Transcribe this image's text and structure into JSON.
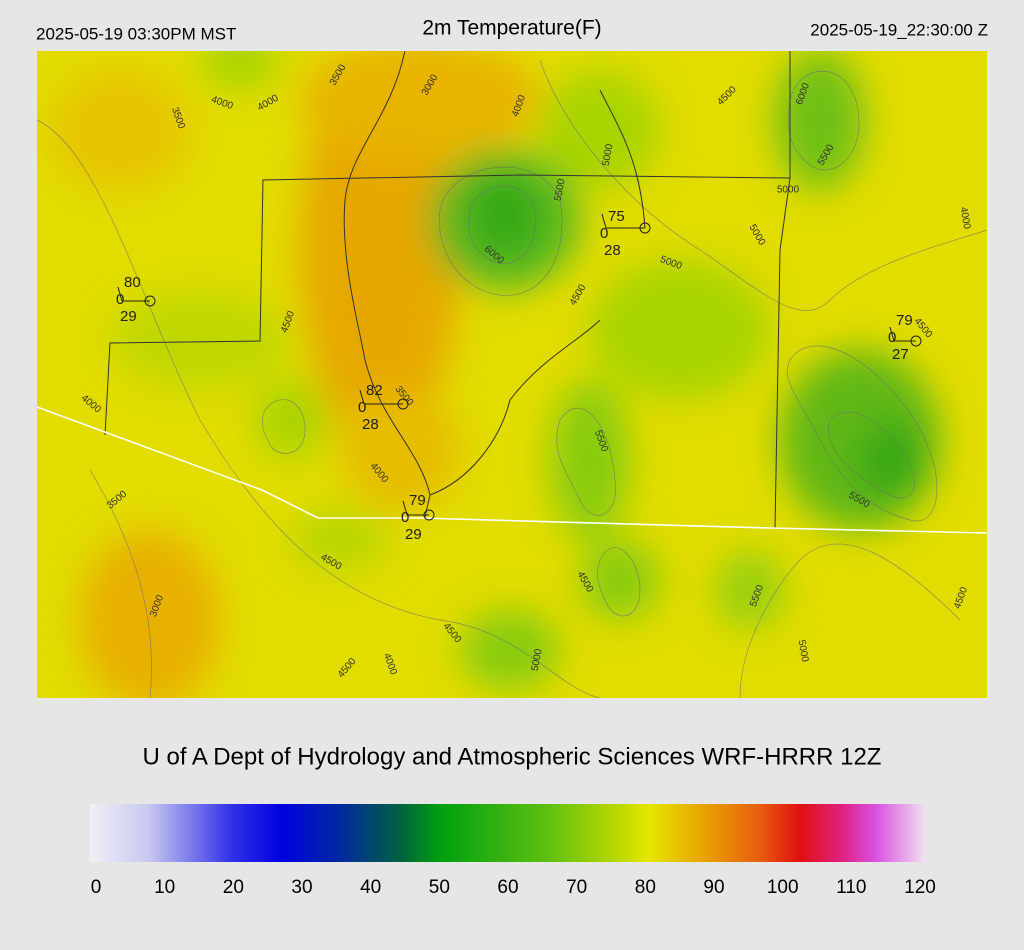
{
  "header": {
    "left": "2025-05-19 03:30PM MST",
    "title": "2m Temperature(F)",
    "right": "2025-05-19_22:30:00 Z"
  },
  "map": {
    "stations": [
      {
        "temp": "80",
        "mid": "0",
        "dew": "29"
      },
      {
        "temp": "75",
        "mid": "0",
        "dew": "28"
      },
      {
        "temp": "79",
        "mid": "0",
        "dew": "27"
      },
      {
        "temp": "82",
        "mid": "0",
        "dew": "28"
      },
      {
        "temp": "79",
        "mid": "0",
        "dew": "29"
      }
    ],
    "contour_labels": [
      "3500",
      "3000",
      "4000",
      "4000",
      "3500",
      "4000",
      "4500",
      "6000",
      "5500",
      "5000",
      "5500",
      "5000",
      "4000",
      "5000",
      "6000",
      "5000",
      "4500",
      "4500",
      "4500",
      "3500",
      "4000",
      "5500",
      "4000",
      "3500",
      "5500",
      "4500",
      "4500",
      "5500",
      "4500",
      "3000",
      "4500",
      "4000",
      "4500",
      "5000",
      "5000"
    ]
  },
  "footer": {
    "credit": "U of A Dept of Hydrology and Atmospheric Sciences WRF-HRRR 12Z"
  },
  "colorbar": {
    "ticks": [
      "0",
      "10",
      "20",
      "30",
      "40",
      "50",
      "60",
      "70",
      "80",
      "90",
      "100",
      "110",
      "120"
    ]
  }
}
